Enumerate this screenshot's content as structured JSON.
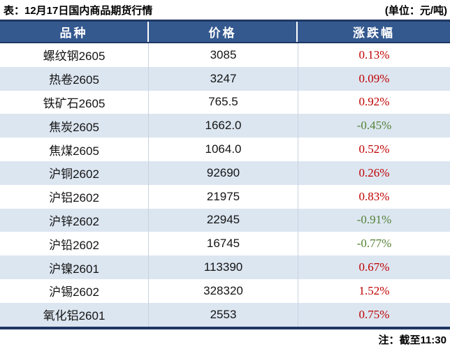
{
  "header": {
    "title": "表：12月17日国内商品期货行情",
    "unit": "(单位：元/吨)"
  },
  "table": {
    "columns": [
      "品种",
      "价格",
      "涨跌幅"
    ],
    "rows": [
      {
        "name": "螺纹钢2605",
        "price": "3085",
        "change": "0.13%",
        "direction": "up"
      },
      {
        "name": "热卷2605",
        "price": "3247",
        "change": "0.09%",
        "direction": "up"
      },
      {
        "name": "铁矿石2605",
        "price": "765.5",
        "change": "0.92%",
        "direction": "up"
      },
      {
        "name": "焦炭2605",
        "price": "1662.0",
        "change": "-0.45%",
        "direction": "down"
      },
      {
        "name": "焦煤2605",
        "price": "1064.0",
        "change": "0.52%",
        "direction": "up"
      },
      {
        "name": "沪铜2602",
        "price": "92690",
        "change": "0.26%",
        "direction": "up"
      },
      {
        "name": "沪铝2602",
        "price": "21975",
        "change": "0.83%",
        "direction": "up"
      },
      {
        "name": "沪锌2602",
        "price": "22945",
        "change": "-0.91%",
        "direction": "down"
      },
      {
        "name": "沪铅2602",
        "price": "16745",
        "change": "-0.77%",
        "direction": "down"
      },
      {
        "name": "沪镍2601",
        "price": "113390",
        "change": "0.67%",
        "direction": "up"
      },
      {
        "name": "沪锡2602",
        "price": "328320",
        "change": "1.52%",
        "direction": "up"
      },
      {
        "name": "氧化铝2601",
        "price": "2553",
        "change": "0.75%",
        "direction": "up"
      }
    ]
  },
  "footer": {
    "note": "注：截至11:30"
  },
  "colors": {
    "header_bg": "#34598F",
    "border_navy": "#1F3864",
    "alt_row_bg": "#DCE6F1",
    "up": "#C00000",
    "down": "#538135"
  }
}
